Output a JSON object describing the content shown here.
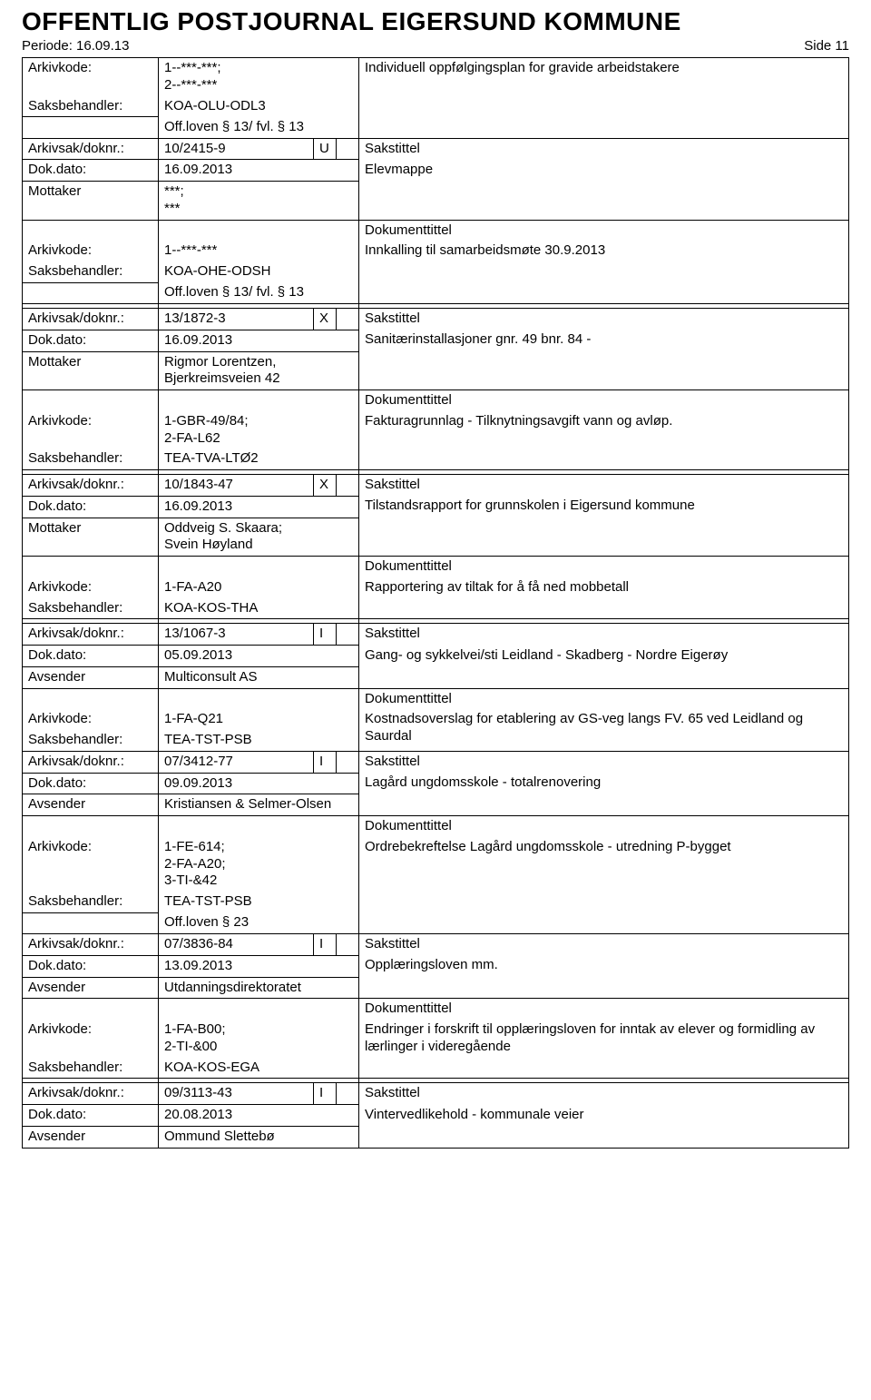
{
  "header": {
    "title": "OFFENTLIG POSTJOURNAL EIGERSUND KOMMUNE",
    "period_label": "Periode: 16.09.13",
    "side_label": "Side 11"
  },
  "labels": {
    "arkivkode": "Arkivkode:",
    "saksbehandler": "Saksbehandler:",
    "arkivsakdoknr": "Arkivsak/doknr.:",
    "dokdato": "Dok.dato:",
    "mottaker": "Mottaker",
    "avsender": "Avsender",
    "sakstittel": "Sakstittel",
    "dokumenttittel": "Dokumenttittel"
  },
  "entries": [
    {
      "lead": {
        "arkivkode": "1--***-***;\n2--***-***",
        "saksbeh": "KOA-OLU-ODL3",
        "offloven": "Off.loven § 13/ fvl. § 13",
        "doktitle": "Individuell oppfølgingsplan for gravide arbeidstakere"
      },
      "doknr": "10/2415-9",
      "doknr_type": "U",
      "dokdato": "16.09.2013",
      "party_role": "Mottaker",
      "party": "***;\n***",
      "sakstittel": "Elevmappe",
      "arkivkode": "1--***-***",
      "doktitle": "Innkalling til samarbeidsmøte 30.9.2013",
      "saksbeh": "KOA-OHE-ODSH",
      "offloven": "Off.loven § 13/ fvl. § 13"
    },
    {
      "doknr": "13/1872-3",
      "doknr_type": "X",
      "dokdato": "16.09.2013",
      "party_role": "Mottaker",
      "party": "Rigmor Lorentzen, Bjerkreimsveien 42",
      "sakstittel": "Sanitærinstallasjoner gnr. 49 bnr. 84 -",
      "arkivkode": "1-GBR-49/84;\n2-FA-L62",
      "doktitle": "Fakturagrunnlag - Tilknytningsavgift vann og avløp.",
      "saksbeh": "TEA-TVA-LTØ2"
    },
    {
      "doknr": "10/1843-47",
      "doknr_type": "X",
      "dokdato": "16.09.2013",
      "party_role": "Mottaker",
      "party": "Oddveig S. Skaara;\nSvein Høyland",
      "sakstittel": "Tilstandsrapport for grunnskolen i Eigersund kommune",
      "arkivkode": "1-FA-A20",
      "doktitle": "Rapportering av tiltak for å få ned mobbetall",
      "saksbeh": "KOA-KOS-THA"
    },
    {
      "doknr": "13/1067-3",
      "doknr_type": "I",
      "dokdato": "05.09.2013",
      "party_role": "Avsender",
      "party": "Multiconsult AS",
      "sakstittel": "Gang- og sykkelvei/sti Leidland - Skadberg - Nordre Eigerøy",
      "arkivkode": "1-FA-Q21",
      "doktitle": "Kostnadsoverslag for etablering av GS-veg langs FV. 65 ved Leidland og Saurdal",
      "saksbeh": "TEA-TST-PSB",
      "no_spacer_after": true
    },
    {
      "doknr": "07/3412-77",
      "doknr_type": "I",
      "dokdato": "09.09.2013",
      "party_role": "Avsender",
      "party": "Kristiansen & Selmer-Olsen",
      "sakstittel": "Lagård ungdomsskole - totalrenovering",
      "arkivkode": "1-FE-614;\n2-FA-A20;\n3-TI-&42",
      "doktitle": "Ordrebekreftelse Lagård ungdomsskole - utredning    P-bygget",
      "saksbeh": "TEA-TST-PSB",
      "offloven": "Off.loven § 23",
      "no_spacer_after": true
    },
    {
      "doknr": "07/3836-84",
      "doknr_type": "I",
      "dokdato": "13.09.2013",
      "party_role": "Avsender",
      "party": "Utdanningsdirektoratet",
      "sakstittel": "Opplæringsloven mm.",
      "arkivkode": "1-FA-B00;\n2-TI-&00",
      "doktitle": "Endringer i forskrift til opplæringsloven for inntak av elever og formidling av lærlinger i videregående",
      "saksbeh": "KOA-KOS-EGA"
    },
    {
      "doknr": "09/3113-43",
      "doknr_type": "I",
      "dokdato": "20.08.2013",
      "party_role": "Avsender",
      "party": "Ommund Slettebø",
      "sakstittel": "Vintervedlikehold - kommunale veier",
      "truncated": true
    }
  ]
}
